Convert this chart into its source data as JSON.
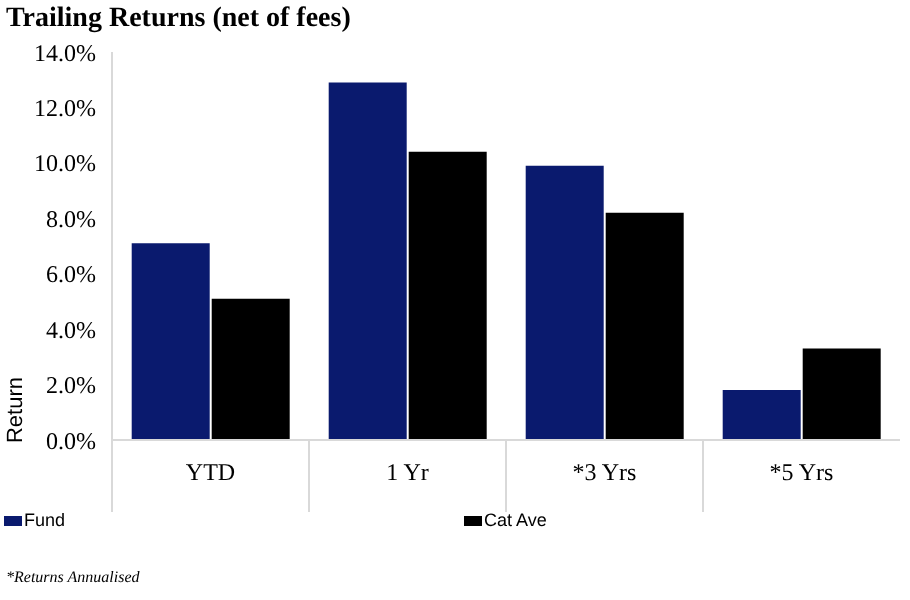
{
  "chart_data": {
    "type": "bar",
    "title": "Trailing Returns (net of fees)",
    "ylabel": "Return",
    "categories": [
      "YTD",
      "1 Yr",
      "*3 Yrs",
      "*5 Yrs"
    ],
    "series": [
      {
        "name": "Fund",
        "color": "#0a1a6e",
        "values": [
          7.1,
          12.9,
          9.9,
          1.8
        ]
      },
      {
        "name": "Cat Ave",
        "color": "#000000",
        "values": [
          5.1,
          10.4,
          8.2,
          3.3
        ]
      }
    ],
    "ylim": [
      0,
      14
    ],
    "yticks": [
      {
        "value": 0,
        "label": "0.0%"
      },
      {
        "value": 2,
        "label": "2.0%"
      },
      {
        "value": 4,
        "label": "4.0%"
      },
      {
        "value": 6,
        "label": "6.0%"
      },
      {
        "value": 8,
        "label": "8.0%"
      },
      {
        "value": 10,
        "label": "10.0%"
      },
      {
        "value": 12,
        "label": "12.0%"
      },
      {
        "value": 14,
        "label": "14.0%"
      }
    ],
    "legend": "bottom",
    "annotations": [
      "*Returns Annualised"
    ]
  }
}
